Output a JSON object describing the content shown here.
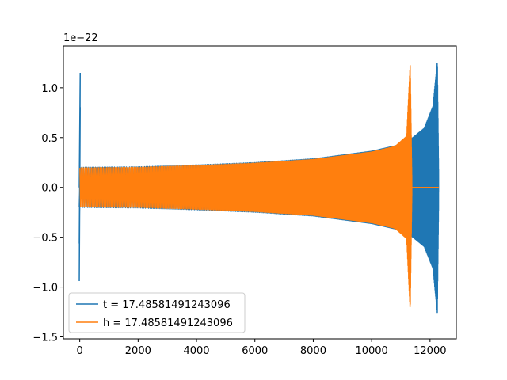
{
  "chart_data": {
    "type": "line",
    "xlim": [
      -560,
      12900
    ],
    "ylim": [
      -1.52,
      1.42
    ],
    "offset_label": "1e−22",
    "x_ticks": [
      0,
      2000,
      4000,
      6000,
      8000,
      10000,
      12000
    ],
    "x_tick_labels": [
      "0",
      "2000",
      "4000",
      "6000",
      "8000",
      "10000",
      "12000"
    ],
    "y_ticks": [
      -1.5,
      -1.0,
      -0.5,
      0.0,
      0.5,
      1.0
    ],
    "y_tick_labels": [
      "−1.5",
      "−1.0",
      "−0.5",
      "0.0",
      "0.5",
      "1.0"
    ],
    "grid": false,
    "legend_position": "lower-left",
    "series": [
      {
        "name": "t = 17.48581491243096",
        "color": "#1f77b4",
        "envelope": {
          "spike_x": 0,
          "spike_min": -0.94,
          "spike_max": 1.15,
          "x": [
            50,
            2000,
            4000,
            6000,
            8000,
            10000,
            11000,
            11400,
            11800,
            12100,
            12250,
            12300
          ],
          "amplitude": [
            0.21,
            0.215,
            0.235,
            0.26,
            0.3,
            0.38,
            0.45,
            0.52,
            0.62,
            0.85,
            1.32,
            0.0
          ]
        },
        "end_x": 12300
      },
      {
        "name": "h = 17.48581491243096",
        "color": "#ff7f0e",
        "envelope": {
          "x": [
            0,
            2000,
            4000,
            6000,
            8000,
            10000,
            10800,
            11200,
            11320,
            11380
          ],
          "amplitude": [
            0.21,
            0.215,
            0.235,
            0.26,
            0.3,
            0.38,
            0.44,
            0.55,
            1.32,
            0.0
          ]
        },
        "flat_segment": [
          11380,
          12300
        ]
      }
    ]
  }
}
